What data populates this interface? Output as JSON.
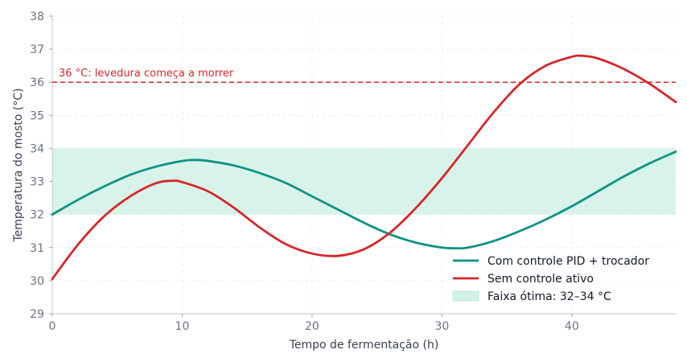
{
  "chart_data": {
    "type": "line",
    "xlabel": "Tempo de fermentação (h)",
    "ylabel": "Temperatura do mosto (°C)",
    "xlim": [
      0,
      48
    ],
    "ylim": [
      29,
      38
    ],
    "x_ticks": [
      0,
      10,
      20,
      30,
      40
    ],
    "y_ticks": [
      29,
      30,
      31,
      32,
      33,
      34,
      35,
      36,
      37,
      38
    ],
    "grid": true,
    "legend_position": "bottom-right",
    "series": [
      {
        "name": "Com controle PID + trocador",
        "color": "#0e9384",
        "x": [
          0,
          2,
          4,
          6,
          8,
          10,
          11,
          12,
          14,
          16,
          18,
          20,
          22,
          24,
          26,
          28,
          30,
          31,
          32,
          34,
          36,
          38,
          40,
          42,
          44,
          46,
          48
        ],
        "y": [
          32.0,
          32.45,
          32.85,
          33.2,
          33.45,
          33.62,
          33.65,
          33.62,
          33.48,
          33.25,
          32.95,
          32.55,
          32.15,
          31.75,
          31.4,
          31.15,
          31.0,
          30.98,
          31.0,
          31.2,
          31.5,
          31.85,
          32.25,
          32.7,
          33.15,
          33.55,
          33.9
        ]
      },
      {
        "name": "Sem controle ativo",
        "color": "#d62728",
        "x": [
          0,
          2,
          4,
          6,
          8,
          9.3,
          10,
          12,
          14,
          16,
          18,
          20,
          22,
          24,
          26,
          28,
          30,
          32,
          34,
          36,
          38,
          40,
          40.8,
          42,
          44,
          46,
          48
        ],
        "y": [
          30.05,
          31.1,
          31.95,
          32.55,
          32.95,
          33.02,
          32.98,
          32.7,
          32.2,
          31.6,
          31.1,
          30.82,
          30.75,
          30.95,
          31.45,
          32.2,
          33.1,
          34.1,
          35.1,
          35.95,
          36.5,
          36.77,
          36.8,
          36.72,
          36.4,
          35.95,
          35.4
        ]
      }
    ],
    "band": {
      "name": "Faixa ótima: 32–34 °C",
      "y_range": [
        32,
        34
      ],
      "color": "#d1f2e6"
    },
    "hline": {
      "y": 36,
      "label": "36 °C: levedura começa a morrer",
      "color": "#d62728"
    }
  }
}
